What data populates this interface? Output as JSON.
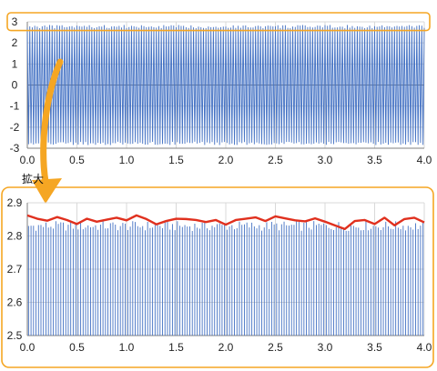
{
  "zoom_label": "拡大",
  "colors": {
    "signal": "#4472c4",
    "envelope": "#e0301e",
    "highlight": "#f5a623",
    "axis": "#7f7f7f",
    "grid": "#d9d9d9"
  },
  "chart_data": [
    {
      "type": "line",
      "title": "",
      "xlabel": "",
      "ylabel": "",
      "xlim": [
        0,
        4
      ],
      "ylim": [
        -3,
        3
      ],
      "x_ticks": [
        "0.0",
        "0.5",
        "1.0",
        "1.5",
        "2.0",
        "2.5",
        "3.0",
        "3.5",
        "4.0"
      ],
      "y_ticks": [
        "3",
        "2",
        "1",
        "0",
        "-1",
        "-2",
        "-3"
      ],
      "grid": true,
      "signal": {
        "cycles": 160,
        "amplitude": 2.85,
        "min_amplitude": 2.5
      },
      "highlighted_band": [
        2.5,
        3
      ]
    },
    {
      "type": "line",
      "title": "",
      "xlabel": "",
      "ylabel": "",
      "xlim": [
        0,
        4
      ],
      "ylim": [
        2.5,
        2.9
      ],
      "x_ticks": [
        "0.0",
        "0.5",
        "1.0",
        "1.5",
        "2.0",
        "2.5",
        "3.0",
        "3.5",
        "4.0"
      ],
      "y_ticks": [
        "2.9",
        "2.8",
        "2.7",
        "2.6",
        "2.5"
      ],
      "grid": true,
      "peaks": {
        "count": 160,
        "base": 2.83,
        "spread": 0.015
      },
      "envelope": {
        "x": [
          0,
          0.1,
          0.2,
          0.3,
          0.4,
          0.5,
          0.6,
          0.7,
          0.8,
          0.9,
          1.0,
          1.1,
          1.2,
          1.3,
          1.4,
          1.5,
          1.6,
          1.7,
          1.8,
          1.9,
          2.0,
          2.1,
          2.2,
          2.3,
          2.4,
          2.5,
          2.6,
          2.7,
          2.8,
          2.9,
          3.0,
          3.1,
          3.2,
          3.3,
          3.4,
          3.5,
          3.6,
          3.7,
          3.8,
          3.9,
          4.0
        ],
        "y": [
          2.862,
          2.852,
          2.846,
          2.857,
          2.848,
          2.836,
          2.852,
          2.843,
          2.849,
          2.855,
          2.847,
          2.862,
          2.851,
          2.835,
          2.845,
          2.852,
          2.851,
          2.848,
          2.842,
          2.848,
          2.834,
          2.848,
          2.852,
          2.856,
          2.845,
          2.859,
          2.853,
          2.847,
          2.844,
          2.853,
          2.843,
          2.832,
          2.821,
          2.845,
          2.848,
          2.836,
          2.855,
          2.832,
          2.851,
          2.855,
          2.841
        ]
      }
    }
  ]
}
